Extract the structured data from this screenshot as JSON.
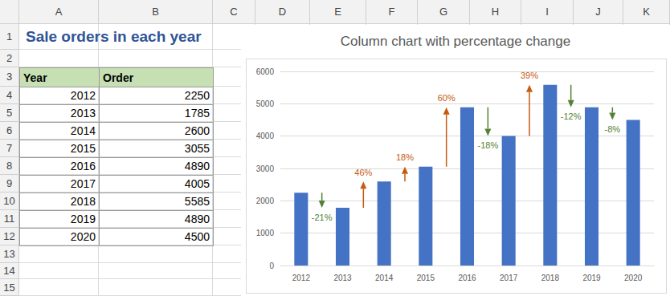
{
  "sheet": {
    "columns": [
      "A",
      "B",
      "C",
      "D",
      "E",
      "F",
      "G",
      "H",
      "I",
      "J",
      "K"
    ],
    "rows": [
      1,
      2,
      3,
      4,
      5,
      6,
      7,
      8,
      9,
      10,
      11,
      12,
      13,
      14,
      15
    ],
    "title": "Sale orders in each year",
    "table": {
      "header": [
        "Year",
        "Order"
      ],
      "rows": [
        [
          2012,
          2250
        ],
        [
          2013,
          1785
        ],
        [
          2014,
          2600
        ],
        [
          2015,
          3055
        ],
        [
          2016,
          4890
        ],
        [
          2017,
          4005
        ],
        [
          2018,
          5585
        ],
        [
          2019,
          4890
        ],
        [
          2020,
          4500
        ]
      ]
    }
  },
  "chart_data": {
    "type": "bar",
    "title": "Column chart with percentage change",
    "categories": [
      "2012",
      "2013",
      "2014",
      "2015",
      "2016",
      "2017",
      "2018",
      "2019",
      "2020"
    ],
    "values": [
      2250,
      1785,
      2600,
      3055,
      4890,
      4005,
      5585,
      4890,
      4500
    ],
    "color": "#4472c4",
    "ylim": [
      0,
      6000
    ],
    "yticks": [
      0,
      1000,
      2000,
      3000,
      4000,
      5000,
      6000
    ],
    "grid": true,
    "changes": {
      "values": [
        -21,
        46,
        18,
        60,
        -18,
        39,
        -12,
        -8
      ],
      "value_labels": [
        "-21%",
        "46%",
        "18%",
        "60%",
        "-18%",
        "39%",
        "-12%",
        "-8%"
      ],
      "colors": [
        "#548235",
        "#c55a11",
        "#c55a11",
        "#c55a11",
        "#548235",
        "#c55a11",
        "#548235",
        "#548235"
      ]
    }
  }
}
